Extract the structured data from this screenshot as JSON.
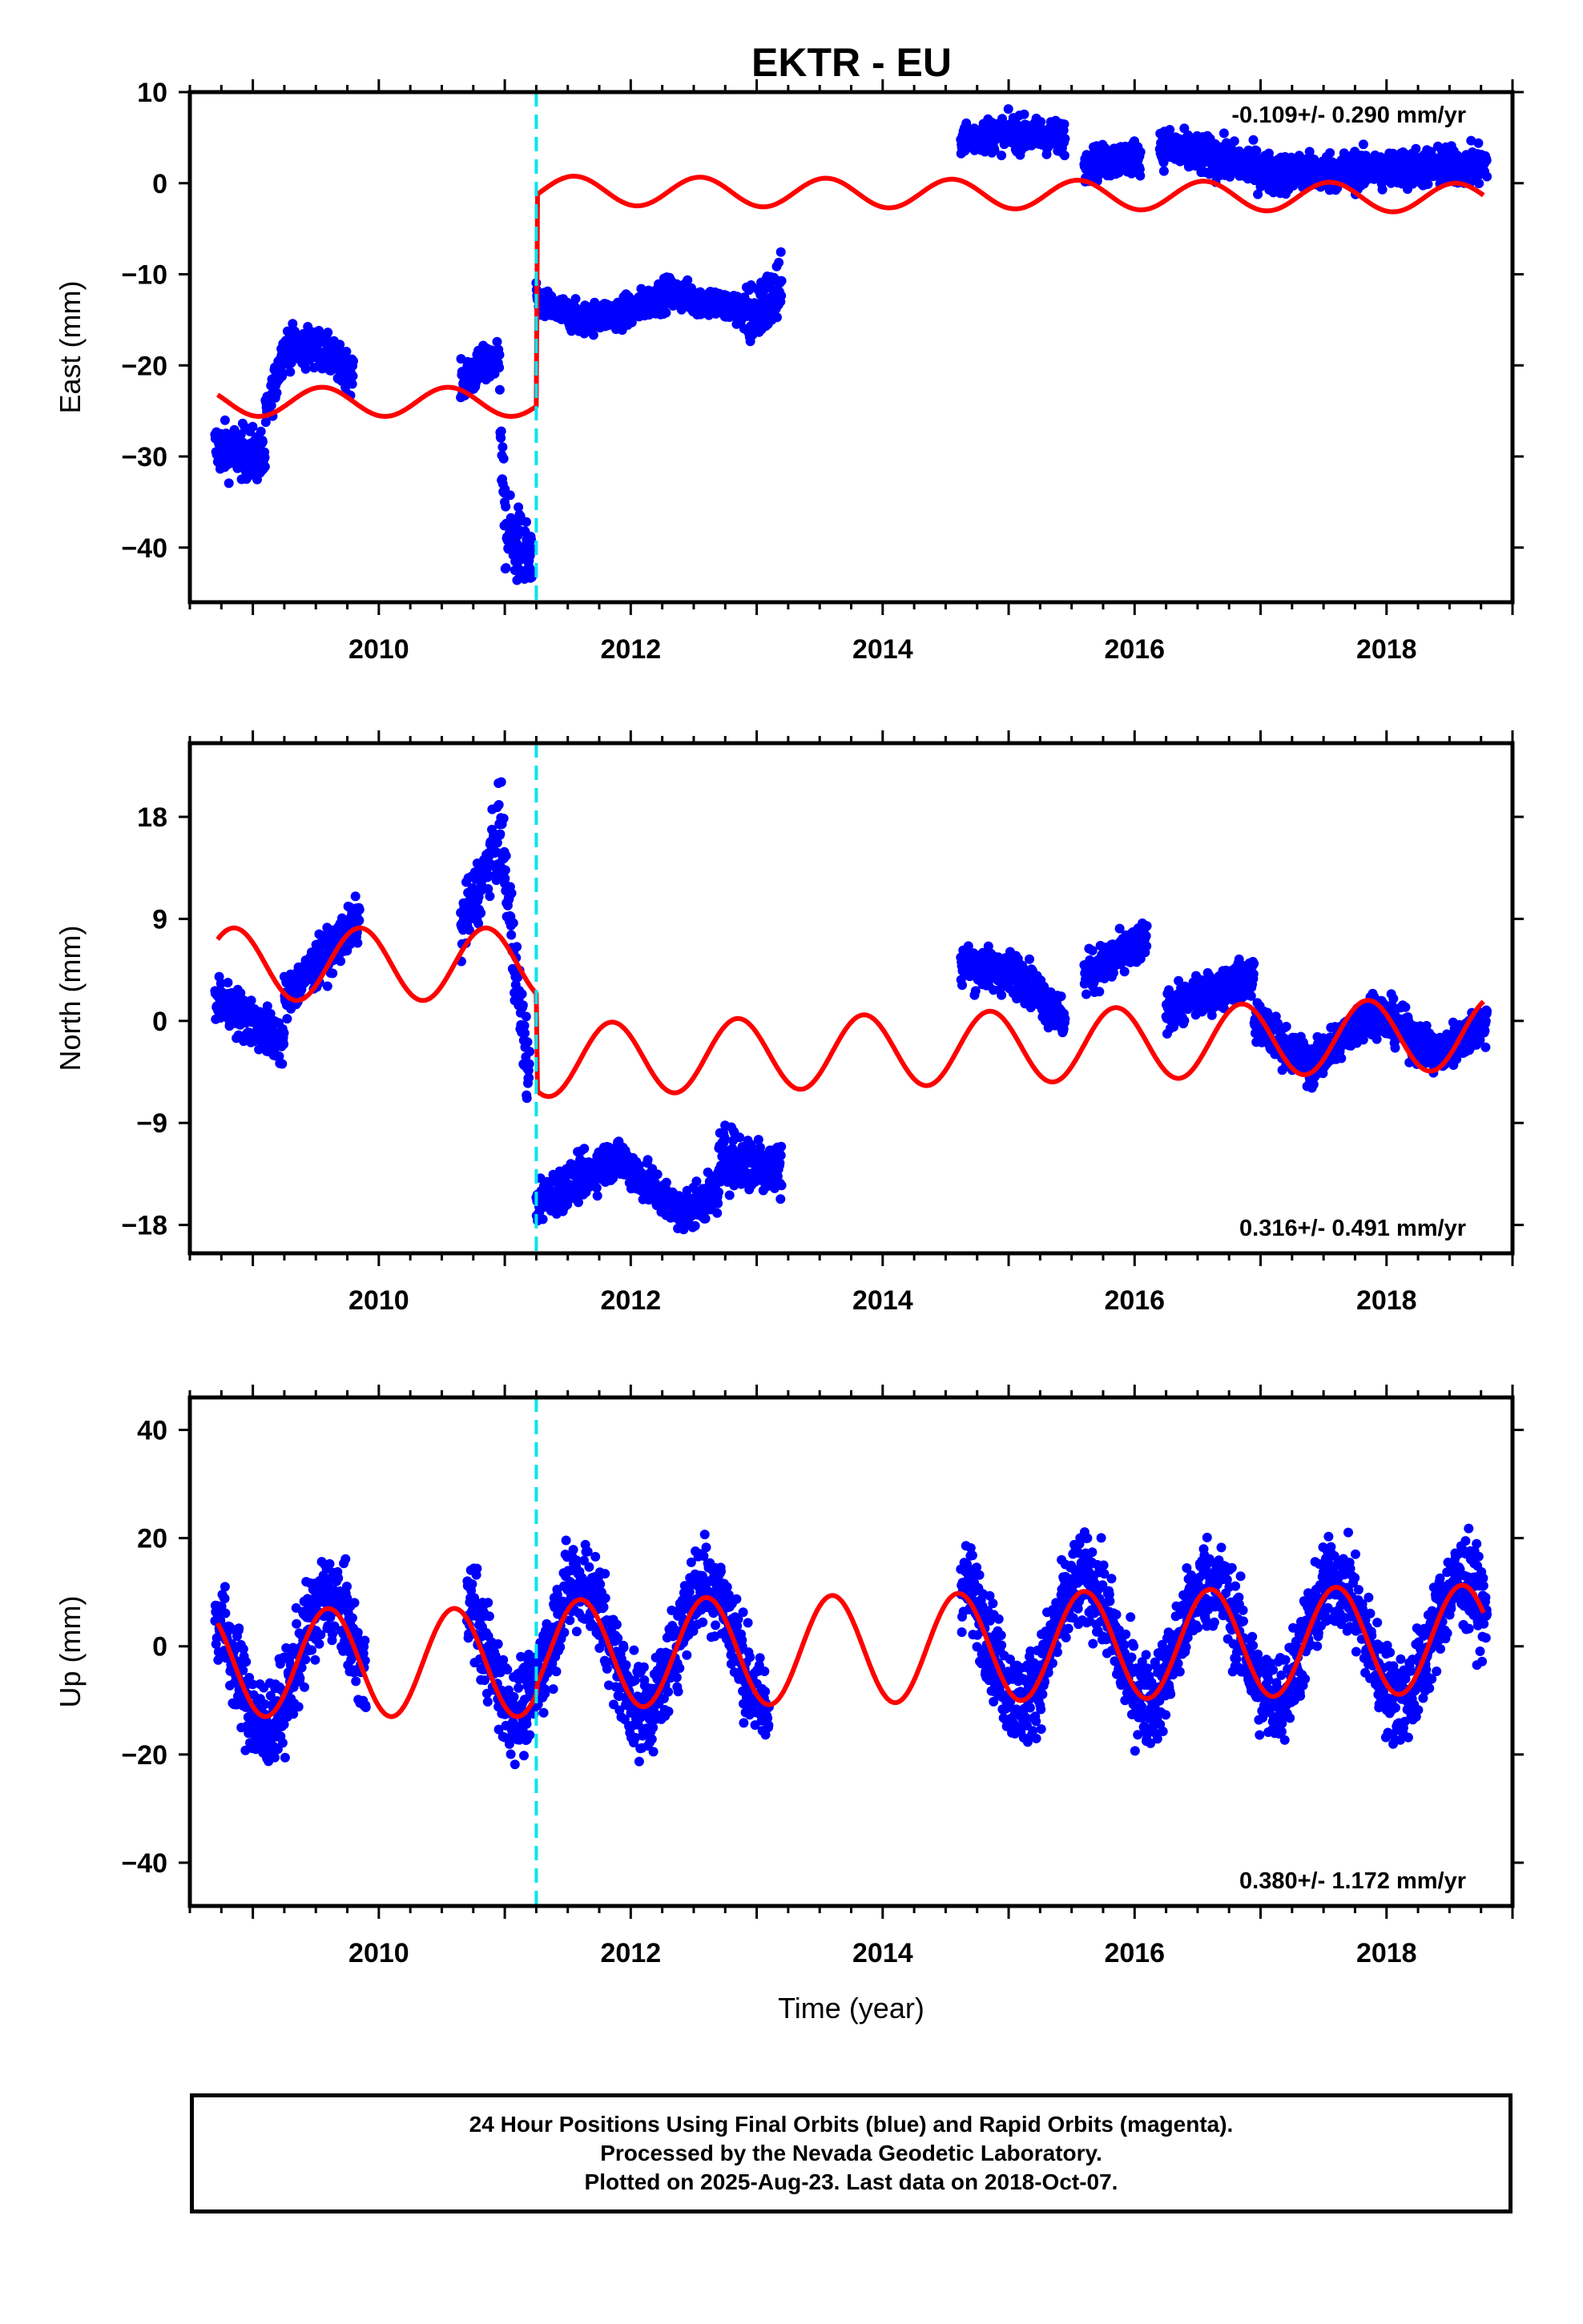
{
  "title": "EKTR - EU",
  "footer": {
    "line1": "24 Hour Positions Using Final Orbits (blue) and Rapid Orbits (magenta).",
    "line2": "Processed by the Nevada Geodetic Laboratory.",
    "line3": "Plotted on 2025-Aug-23. Last data on 2018-Oct-07."
  },
  "colors": {
    "data_points": "#0000ff",
    "model_fit": "#ff0000",
    "event_line": "#00e5ee",
    "axes": "#000000"
  },
  "chart_data": [
    {
      "type": "scatter",
      "component": "east",
      "ylabel": "East (mm)",
      "xlabel": "",
      "rate_label": "-0.109+/- 0.290 mm/yr",
      "xlim": [
        2008.5,
        2019.0
      ],
      "ylim": [
        -46.0,
        10.0
      ],
      "xticks": [
        2010,
        2012,
        2014,
        2016,
        2018
      ],
      "yticks": [
        10,
        0,
        -10,
        -20,
        -30,
        -40
      ],
      "event_line_x": 2011.25,
      "model": {
        "pre": -24.0,
        "post": -0.8,
        "post_trend": -0.11,
        "amp": 1.6,
        "phase": 0.3
      },
      "data_segments": [
        {
          "x0": 2008.7,
          "x1": 2009.1,
          "levels": [
            [
              2008.7,
              -29
            ],
            [
              2009.1,
              -30
            ]
          ],
          "noise": 2.0
        },
        {
          "x0": 2009.1,
          "x1": 2009.8,
          "levels": [
            [
              2009.1,
              -26
            ],
            [
              2009.25,
              -18
            ],
            [
              2009.5,
              -18
            ],
            [
              2009.8,
              -21
            ]
          ],
          "noise": 1.5
        },
        {
          "x0": 2010.65,
          "x1": 2010.95,
          "levels": [
            [
              2010.65,
              -22
            ],
            [
              2010.95,
              -19
            ]
          ],
          "noise": 1.5
        },
        {
          "x0": 2010.95,
          "x1": 2011.22,
          "levels": [
            [
              2010.95,
              -20
            ],
            [
              2011.0,
              -38
            ],
            [
              2011.22,
              -42
            ]
          ],
          "noise": 3.0
        },
        {
          "x0": 2011.25,
          "x1": 2012.9,
          "levels": [
            [
              2011.25,
              -13
            ],
            [
              2011.6,
              -15
            ],
            [
              2012.0,
              -14
            ],
            [
              2012.3,
              -12
            ],
            [
              2012.9,
              -14
            ]
          ],
          "noise": 1.2
        },
        {
          "x0": 2012.9,
          "x1": 2013.2,
          "levels": [
            [
              2012.9,
              -15
            ],
            [
              2013.2,
              -12
            ]
          ],
          "noise": 2.5
        },
        {
          "x0": 2014.62,
          "x1": 2015.45,
          "levels": [
            [
              2014.62,
              5
            ],
            [
              2015.0,
              5.5
            ],
            [
              2015.45,
              5
            ]
          ],
          "noise": 1.3
        },
        {
          "x0": 2015.6,
          "x1": 2016.05,
          "levels": [
            [
              2015.6,
              2
            ],
            [
              2016.05,
              3
            ]
          ],
          "noise": 1.3
        },
        {
          "x0": 2016.2,
          "x1": 2018.8,
          "levels": [
            [
              2016.2,
              4
            ],
            [
              2016.9,
              2
            ],
            [
              2017.1,
              1
            ],
            [
              2018.8,
              2
            ]
          ],
          "noise": 1.5
        }
      ]
    },
    {
      "type": "scatter",
      "component": "north",
      "ylabel": "North (mm)",
      "xlabel": "",
      "rate_label": "0.316+/- 0.491 mm/yr",
      "xlim": [
        2008.5,
        2019.0
      ],
      "ylim": [
        -20.5,
        24.5
      ],
      "xticks": [
        2010,
        2012,
        2014,
        2016,
        2018
      ],
      "yticks": [
        18,
        9,
        0,
        -9,
        -18
      ],
      "event_line_x": 2011.25,
      "model": {
        "pre": 5.0,
        "post": -3.5,
        "post_trend": 0.32,
        "amp": 3.2,
        "phase": 0.6
      },
      "data_segments": [
        {
          "x0": 2008.7,
          "x1": 2009.25,
          "levels": [
            [
              2008.7,
              2
            ],
            [
              2009.25,
              -2
            ]
          ],
          "noise": 1.5
        },
        {
          "x0": 2009.25,
          "x1": 2009.85,
          "levels": [
            [
              2009.25,
              2
            ],
            [
              2009.85,
              9
            ]
          ],
          "noise": 1.4
        },
        {
          "x0": 2010.65,
          "x1": 2010.95,
          "levels": [
            [
              2010.65,
              8
            ],
            [
              2010.95,
              16
            ]
          ],
          "noise": 2.0
        },
        {
          "x0": 2010.95,
          "x1": 2011.2,
          "levels": [
            [
              2010.95,
              18
            ],
            [
              2011.2,
              -6
            ]
          ],
          "noise": 2.5
        },
        {
          "x0": 2011.25,
          "x1": 2012.7,
          "levels": [
            [
              2011.25,
              -16
            ],
            [
              2011.9,
              -12
            ],
            [
              2012.4,
              -17
            ],
            [
              2012.7,
              -15
            ]
          ],
          "noise": 1.3
        },
        {
          "x0": 2012.7,
          "x1": 2013.2,
          "levels": [
            [
              2012.7,
              -12
            ],
            [
              2013.2,
              -13
            ]
          ],
          "noise": 1.8
        },
        {
          "x0": 2014.62,
          "x1": 2015.45,
          "levels": [
            [
              2014.62,
              5
            ],
            [
              2015.1,
              4
            ],
            [
              2015.45,
              0
            ]
          ],
          "noise": 1.3
        },
        {
          "x0": 2015.6,
          "x1": 2016.1,
          "levels": [
            [
              2015.6,
              4
            ],
            [
              2016.1,
              7
            ]
          ],
          "noise": 1.3
        },
        {
          "x0": 2016.25,
          "x1": 2016.95,
          "levels": [
            [
              2016.25,
              1
            ],
            [
              2016.95,
              4
            ]
          ],
          "noise": 1.2
        },
        {
          "x0": 2016.95,
          "x1": 2018.8,
          "levels": [
            [
              2016.95,
              0
            ],
            [
              2017.4,
              -4
            ],
            [
              2017.9,
              1
            ],
            [
              2018.4,
              -3
            ],
            [
              2018.8,
              0
            ]
          ],
          "noise": 1.3
        }
      ]
    },
    {
      "type": "scatter",
      "component": "up",
      "ylabel": "Up (mm)",
      "xlabel": "Time (year)",
      "rate_label": "0.380+/- 1.172 mm/yr",
      "xlim": [
        2008.5,
        2019.0
      ],
      "ylim": [
        -48.0,
        46.0
      ],
      "xticks": [
        2010,
        2012,
        2014,
        2016,
        2018
      ],
      "yticks": [
        40,
        20,
        0,
        -20,
        -40
      ],
      "event_line_x": 2011.25,
      "model": {
        "pre": -3.0,
        "post": -1.5,
        "post_trend": 0.38,
        "amp": 10.0,
        "phase": 0.35
      },
      "data_segments": [
        {
          "x0": 2008.7,
          "x1": 2009.9,
          "seasonal": true,
          "amp": 12,
          "base": -3,
          "phase": 0.35,
          "noise": 6
        },
        {
          "x0": 2010.7,
          "x1": 2013.1,
          "seasonal": true,
          "amp": 12,
          "base": 0,
          "phase": 0.35,
          "noise": 6
        },
        {
          "x0": 2014.62,
          "x1": 2018.8,
          "seasonal": true,
          "amp": 11,
          "base": 1,
          "phase": 0.35,
          "noise": 6
        }
      ]
    }
  ]
}
